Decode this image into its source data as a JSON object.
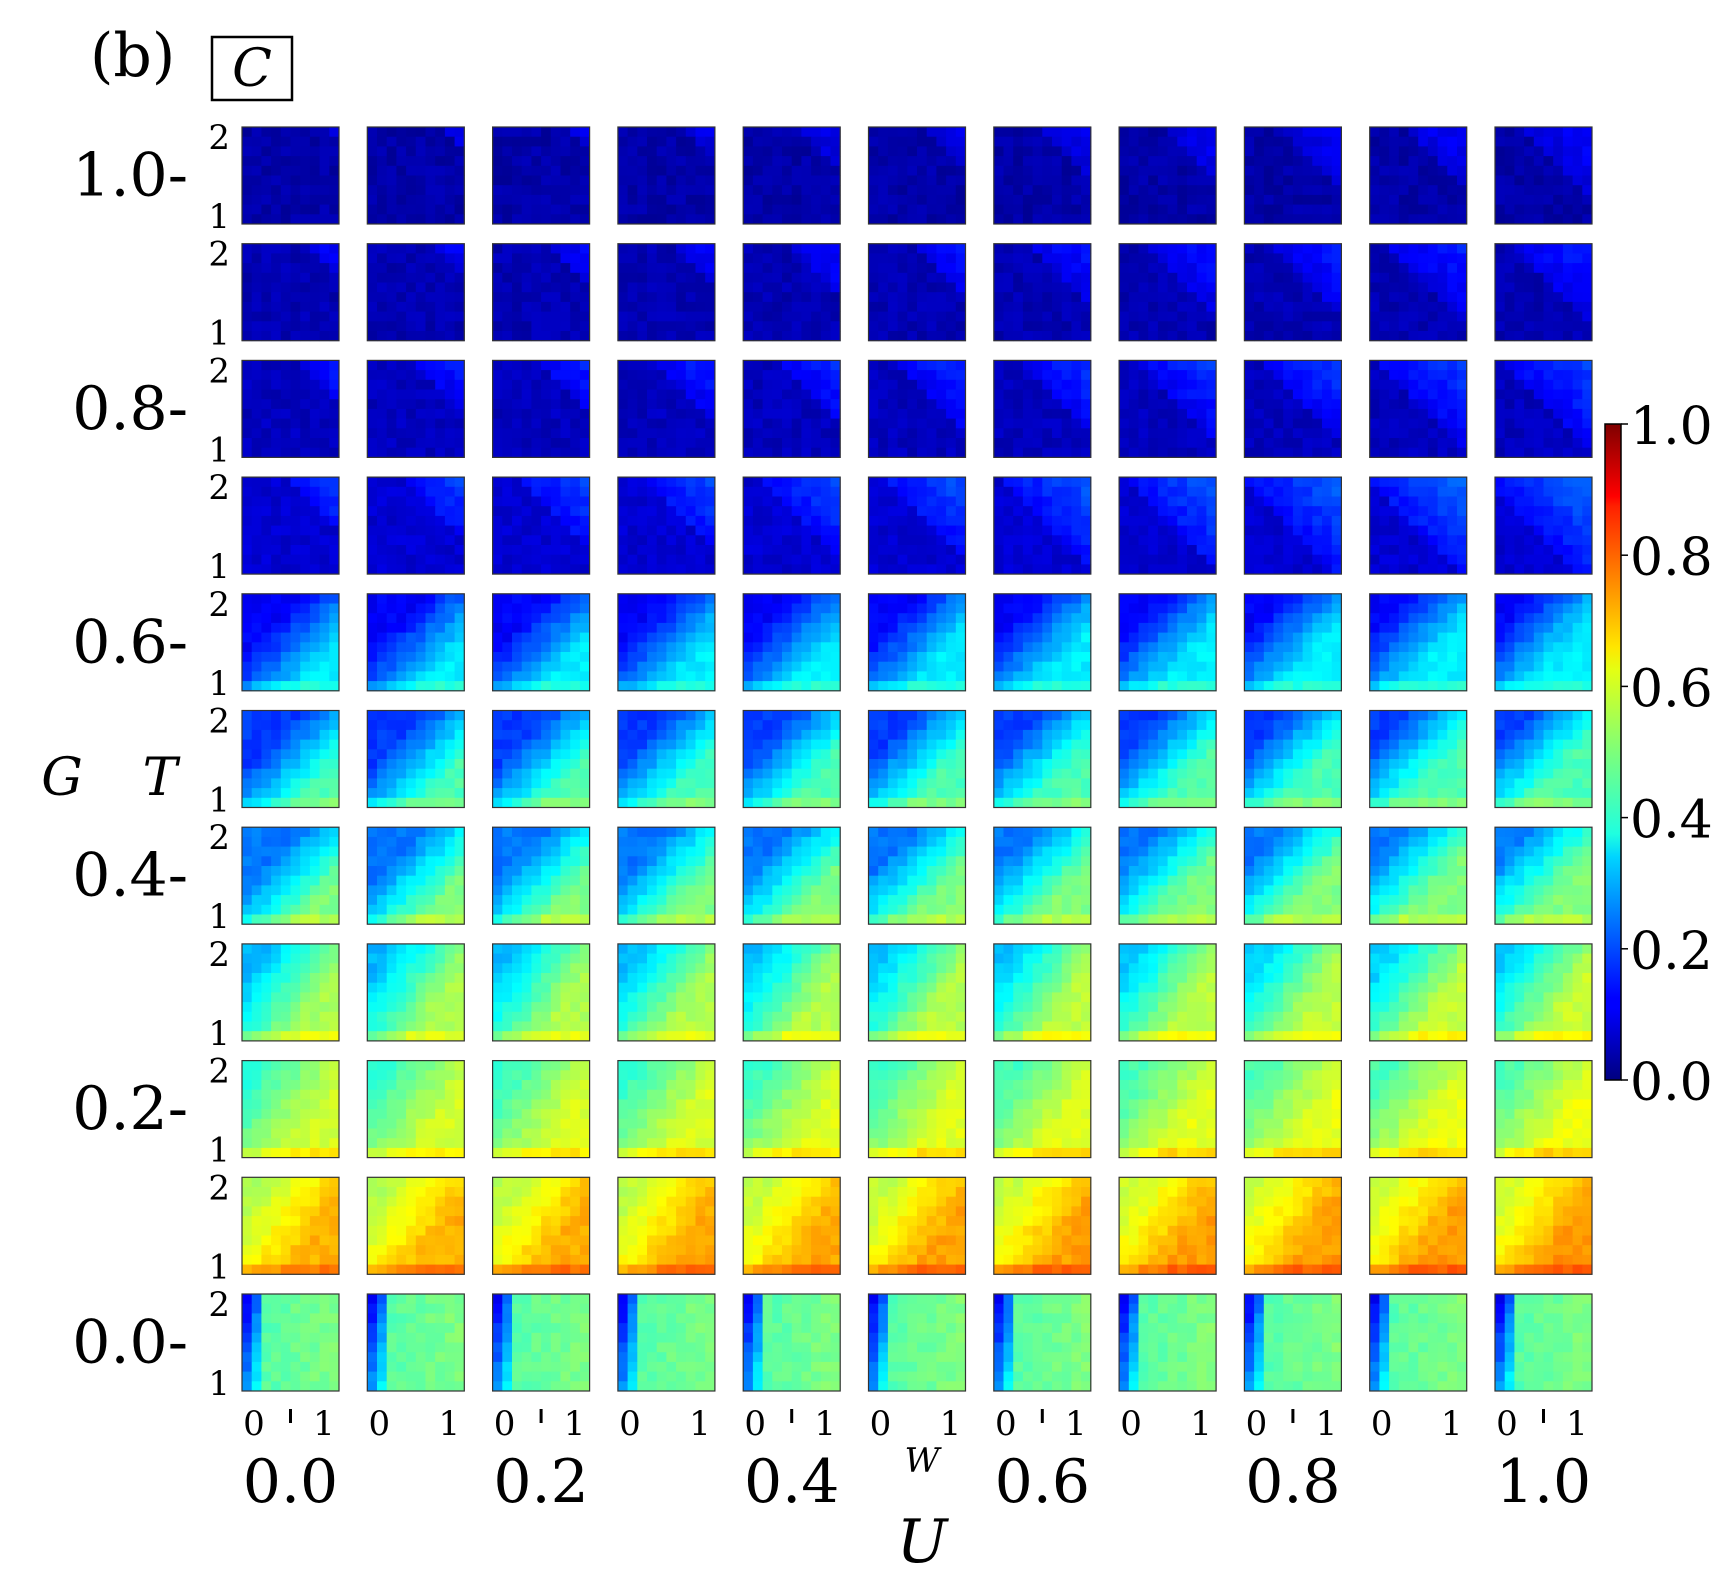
{
  "panel_label": "(b)",
  "boxed_label": "C",
  "chart_data": {
    "type": "heatmap",
    "description_grid": "11 x 11 grid of small heatmaps; outer axes U (columns) and G (rows); inner axes W (x) and T (y)",
    "outer_x": {
      "label": "U",
      "values": [
        0.0,
        0.1,
        0.2,
        0.3,
        0.4,
        0.5,
        0.6,
        0.7,
        0.8,
        0.9,
        1.0
      ],
      "tick_labels": [
        "0.0",
        "0.2",
        "0.4",
        "0.6",
        "0.8",
        "1.0"
      ]
    },
    "outer_y": {
      "label": "G",
      "values": [
        1.0,
        0.9,
        0.8,
        0.7,
        0.6,
        0.5,
        0.4,
        0.3,
        0.2,
        0.1,
        0.0
      ],
      "tick_labels": [
        "1.0-",
        "0.8-",
        "0.6-",
        "0.4-",
        "0.2-",
        "0.0-"
      ]
    },
    "inner_x": {
      "label": "W",
      "tick_labels": [
        "0",
        "1"
      ],
      "range": [
        0,
        1
      ]
    },
    "inner_y": {
      "label": "T",
      "tick_labels": [
        "2",
        "1"
      ],
      "range": [
        1,
        2
      ]
    },
    "colorbar": {
      "range": [
        0.0,
        1.0
      ],
      "tick_labels": [
        "1.0",
        "0.8",
        "0.6",
        "0.4",
        "0.2",
        "0.0"
      ],
      "colormap": "jet"
    },
    "row_levels": [
      {
        "G": 1.0,
        "base": 0.04,
        "peak": 0.12
      },
      {
        "G": 0.9,
        "base": 0.05,
        "peak": 0.16
      },
      {
        "G": 0.8,
        "base": 0.06,
        "peak": 0.19
      },
      {
        "G": 0.7,
        "base": 0.08,
        "peak": 0.22
      },
      {
        "G": 0.6,
        "base": 0.12,
        "peak": 0.36
      },
      {
        "G": 0.5,
        "base": 0.18,
        "peak": 0.45
      },
      {
        "G": 0.4,
        "base": 0.24,
        "peak": 0.5
      },
      {
        "G": 0.3,
        "base": 0.3,
        "peak": 0.54
      },
      {
        "G": 0.2,
        "base": 0.42,
        "peak": 0.58
      },
      {
        "G": 0.1,
        "base": 0.55,
        "peak": 0.7
      },
      {
        "G": 0.0,
        "base": 0.45,
        "peak": 0.5
      }
    ]
  }
}
